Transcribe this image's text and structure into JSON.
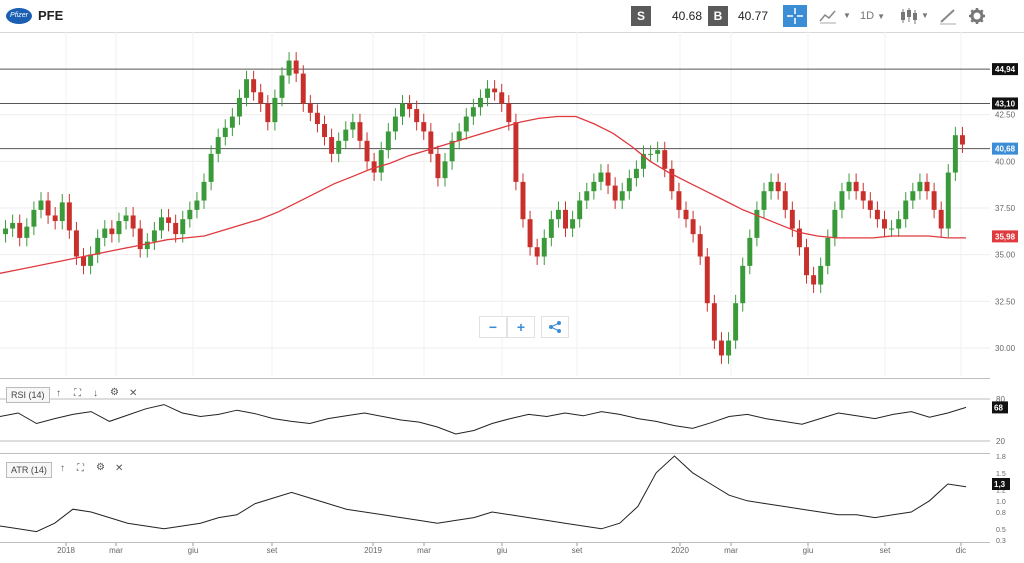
{
  "header": {
    "logo_text": "Pfizer",
    "symbol": "PFE",
    "sell_label": "S",
    "sell_price": "40.68",
    "buy_label": "B",
    "buy_price": "40.77",
    "timeframe": "1D"
  },
  "icons": {
    "crosshair": "crosshair-icon",
    "chart_type": "line-chart-icon",
    "candles": "candlestick-icon",
    "drawing": "pencil-icon",
    "settings": "gear-icon",
    "zoom_out": "minus-icon",
    "zoom_in": "plus-icon",
    "share": "share-icon"
  },
  "price_axis": {
    "ticks": [
      "42.50",
      "40.00",
      "37.50",
      "35.00",
      "32.50",
      "30.00"
    ],
    "levels": [
      "44,94",
      "43,10",
      "40,68"
    ],
    "ma_value": "35,98"
  },
  "rsi": {
    "label": "RSI (14)",
    "ticks": [
      "80",
      "20"
    ],
    "current": "68"
  },
  "atr": {
    "label": "ATR (14)",
    "ticks": [
      "1.8",
      "1.5",
      "1.2",
      "1.0",
      "0.8",
      "0.5",
      "0.3"
    ],
    "current": "1,3"
  },
  "x_axis": {
    "ticks": [
      "2018",
      "mar",
      "giu",
      "set",
      "2019",
      "mar",
      "giu",
      "set",
      "2020",
      "mar",
      "giu",
      "set",
      "dic"
    ]
  },
  "colors": {
    "accent": "#3b8ed6",
    "ma_line": "#e0393e",
    "up_candle": "#3a9a3a",
    "down_candle": "#c9302c",
    "current_price_tag": "#3b8ed6"
  },
  "chart_data": {
    "type": "candlestick",
    "price_series": [
      36.4,
      36.7,
      35.9,
      36.5,
      37.4,
      37.9,
      37.1,
      36.8,
      37.8,
      36.3,
      34.9,
      34.4,
      35.0,
      35.9,
      36.4,
      36.1,
      36.8,
      37.1,
      36.4,
      35.3,
      35.7,
      36.3,
      37.0,
      36.7,
      36.1,
      36.9,
      37.4,
      37.9,
      38.9,
      40.4,
      41.3,
      41.8,
      42.4,
      43.4,
      44.4,
      43.7,
      43.1,
      42.1,
      43.4,
      44.6,
      45.4,
      44.7,
      43.1,
      42.6,
      42.0,
      41.3,
      40.4,
      41.1,
      41.7,
      42.1,
      41.1,
      40.0,
      39.4,
      40.6,
      41.6,
      42.4,
      43.1,
      42.8,
      42.1,
      41.6,
      40.4,
      39.1,
      40.0,
      41.1,
      41.6,
      42.4,
      42.9,
      43.4,
      43.9,
      43.7,
      43.1,
      42.1,
      38.9,
      36.9,
      35.4,
      34.9,
      35.9,
      36.9,
      37.4,
      36.4,
      36.9,
      37.9,
      38.4,
      38.9,
      39.4,
      38.7,
      37.9,
      38.4,
      39.1,
      39.6,
      40.4,
      40.4,
      40.6,
      39.6,
      38.4,
      37.4,
      36.9,
      36.1,
      34.9,
      32.4,
      30.4,
      29.6,
      30.4,
      32.4,
      34.4,
      35.9,
      37.4,
      38.4,
      38.9,
      38.4,
      37.4,
      36.4,
      35.4,
      33.9,
      33.4,
      34.4,
      35.9,
      37.4,
      38.4,
      38.9,
      38.4,
      37.9,
      37.4,
      36.9,
      36.4,
      36.4,
      36.9,
      37.9,
      38.4,
      38.9,
      38.4,
      37.4,
      36.4,
      39.4,
      41.4,
      40.9
    ],
    "ma_series": [
      34.0,
      34.2,
      34.4,
      34.6,
      34.8,
      35.0,
      35.2,
      35.4,
      35.6,
      35.8,
      35.9,
      36.0,
      36.3,
      36.6,
      36.9,
      37.3,
      37.8,
      38.3,
      38.8,
      39.2,
      39.6,
      39.9,
      40.3,
      40.6,
      40.9,
      41.2,
      41.5,
      41.8,
      42.1,
      42.3,
      42.4,
      42.4,
      42.0,
      41.5,
      40.8,
      40.0,
      39.4,
      38.9,
      38.4,
      37.9,
      37.4,
      37.0,
      36.6,
      36.2,
      36.0,
      35.9,
      35.9,
      35.9,
      36.0,
      36.0,
      36.0,
      35.9,
      35.9
    ],
    "rsi_series": [
      55,
      60,
      45,
      52,
      58,
      62,
      48,
      57,
      66,
      72,
      60,
      55,
      58,
      64,
      59,
      52,
      48,
      45,
      52,
      56,
      60,
      55,
      50,
      47,
      40,
      30,
      35,
      45,
      52,
      58,
      55,
      60,
      56,
      62,
      58,
      52,
      48,
      42,
      38,
      46,
      55,
      58,
      52,
      48,
      44,
      52,
      60,
      56,
      52,
      58,
      62,
      54,
      60,
      68
    ],
    "atr_series": [
      0.55,
      0.5,
      0.45,
      0.6,
      0.85,
      0.8,
      0.7,
      0.6,
      0.55,
      0.5,
      0.55,
      0.6,
      0.7,
      0.75,
      0.95,
      1.05,
      1.15,
      1.05,
      0.95,
      0.85,
      0.8,
      0.75,
      0.7,
      0.65,
      0.6,
      0.65,
      0.7,
      0.8,
      0.75,
      0.7,
      0.65,
      0.6,
      0.55,
      0.5,
      0.6,
      0.9,
      1.5,
      1.8,
      1.5,
      1.3,
      1.1,
      1.0,
      0.95,
      0.9,
      0.85,
      0.8,
      0.75,
      0.75,
      0.7,
      0.75,
      0.8,
      1.0,
      1.3,
      1.25
    ],
    "ylim": [
      28.5,
      46.5
    ],
    "rsi_ylim": [
      10,
      90
    ],
    "atr_ylim": [
      0.3,
      1.8
    ],
    "grid": true
  }
}
